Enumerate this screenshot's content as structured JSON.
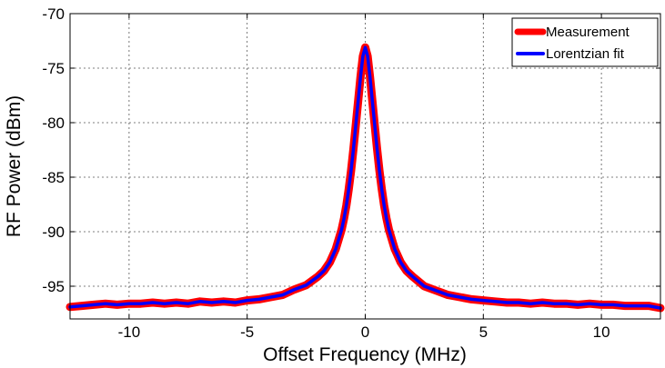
{
  "chart_data": {
    "type": "line",
    "title": "",
    "xlabel": "Offset Frequency (MHz)",
    "ylabel": "RF Power (dBm)",
    "xlim": [
      -12.5,
      12.5
    ],
    "ylim": [
      -98,
      -70
    ],
    "xticks": [
      -10,
      -5,
      0,
      5,
      10
    ],
    "yticks": [
      -95,
      -90,
      -85,
      -80,
      -75,
      -70
    ],
    "grid": true,
    "legend_position": "top-right",
    "series": [
      {
        "name": "Measurement",
        "color": "#ff0000",
        "x": [
          -12.5,
          -12.0,
          -11.5,
          -11.0,
          -10.5,
          -10.0,
          -9.5,
          -9.0,
          -8.5,
          -8.0,
          -7.5,
          -7.0,
          -6.5,
          -6.0,
          -5.5,
          -5.0,
          -4.5,
          -4.0,
          -3.5,
          -3.0,
          -2.5,
          -2.0,
          -1.75,
          -1.5,
          -1.25,
          -1.0,
          -0.9,
          -0.8,
          -0.7,
          -0.6,
          -0.5,
          -0.4,
          -0.3,
          -0.2,
          -0.1,
          0.0,
          0.1,
          0.2,
          0.3,
          0.4,
          0.5,
          0.6,
          0.7,
          0.8,
          0.9,
          1.0,
          1.25,
          1.5,
          1.75,
          2.0,
          2.5,
          3.0,
          3.5,
          4.0,
          4.5,
          5.0,
          5.5,
          6.0,
          6.5,
          7.0,
          7.5,
          8.0,
          8.5,
          9.0,
          9.5,
          10.0,
          10.5,
          11.0,
          11.5,
          12.0,
          12.5
        ],
        "y": [
          -96.9,
          -96.8,
          -96.7,
          -96.6,
          -96.7,
          -96.6,
          -96.6,
          -96.5,
          -96.6,
          -96.5,
          -96.6,
          -96.4,
          -96.5,
          -96.4,
          -96.5,
          -96.3,
          -96.2,
          -96.0,
          -95.8,
          -95.3,
          -94.9,
          -94.1,
          -93.6,
          -92.8,
          -91.6,
          -89.8,
          -88.8,
          -87.6,
          -86.1,
          -84.4,
          -82.4,
          -80.2,
          -78.0,
          -75.8,
          -73.9,
          -73.1,
          -73.9,
          -75.8,
          -78.0,
          -80.2,
          -82.4,
          -84.4,
          -86.1,
          -87.6,
          -88.8,
          -89.8,
          -91.6,
          -92.8,
          -93.6,
          -94.1,
          -95.0,
          -95.4,
          -95.8,
          -96.0,
          -96.2,
          -96.3,
          -96.4,
          -96.5,
          -96.5,
          -96.6,
          -96.5,
          -96.6,
          -96.6,
          -96.7,
          -96.6,
          -96.7,
          -96.7,
          -96.8,
          -96.8,
          -96.8,
          -97.0
        ]
      },
      {
        "name": "Lorentzian fit",
        "color": "#0000ff",
        "x": [
          -12.5,
          -12.0,
          -11.5,
          -11.0,
          -10.5,
          -10.0,
          -9.5,
          -9.0,
          -8.5,
          -8.0,
          -7.5,
          -7.0,
          -6.5,
          -6.0,
          -5.5,
          -5.0,
          -4.5,
          -4.0,
          -3.5,
          -3.0,
          -2.5,
          -2.0,
          -1.75,
          -1.5,
          -1.25,
          -1.0,
          -0.9,
          -0.8,
          -0.7,
          -0.6,
          -0.5,
          -0.4,
          -0.3,
          -0.2,
          -0.1,
          0.0,
          0.1,
          0.2,
          0.3,
          0.4,
          0.5,
          0.6,
          0.7,
          0.8,
          0.9,
          1.0,
          1.25,
          1.5,
          1.75,
          2.0,
          2.5,
          3.0,
          3.5,
          4.0,
          4.5,
          5.0,
          5.5,
          6.0,
          6.5,
          7.0,
          7.5,
          8.0,
          8.5,
          9.0,
          9.5,
          10.0,
          10.5,
          11.0,
          11.5,
          12.0,
          12.5
        ],
        "y": [
          -96.9,
          -96.8,
          -96.7,
          -96.6,
          -96.7,
          -96.6,
          -96.6,
          -96.5,
          -96.6,
          -96.5,
          -96.6,
          -96.4,
          -96.5,
          -96.4,
          -96.5,
          -96.3,
          -96.2,
          -96.0,
          -95.8,
          -95.3,
          -94.9,
          -94.1,
          -93.6,
          -92.8,
          -91.6,
          -89.8,
          -88.8,
          -87.6,
          -86.1,
          -84.4,
          -82.4,
          -80.2,
          -78.0,
          -75.8,
          -73.9,
          -73.1,
          -73.9,
          -75.8,
          -78.0,
          -80.2,
          -82.4,
          -84.4,
          -86.1,
          -87.6,
          -88.8,
          -89.8,
          -91.6,
          -92.8,
          -93.6,
          -94.1,
          -95.0,
          -95.4,
          -95.8,
          -96.0,
          -96.2,
          -96.3,
          -96.4,
          -96.5,
          -96.5,
          -96.6,
          -96.5,
          -96.6,
          -96.6,
          -96.7,
          -96.6,
          -96.7,
          -96.7,
          -96.8,
          -96.8,
          -96.8,
          -97.0
        ]
      }
    ]
  }
}
